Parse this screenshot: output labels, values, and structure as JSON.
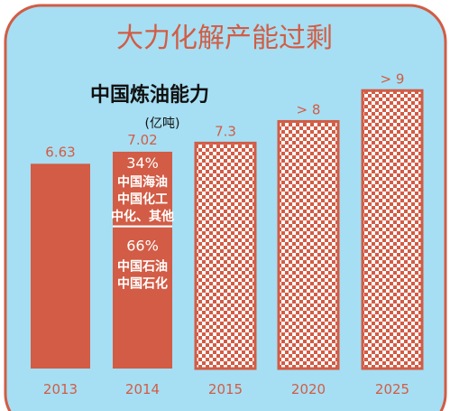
{
  "chart_data": {
    "type": "bar",
    "title": "大力化解产能过剩",
    "subtitle": "中国炼油能力",
    "unit": "(亿吨)",
    "categories": [
      "2013",
      "2014",
      "2015",
      "2020",
      "2025"
    ],
    "values": [
      6.63,
      7.02,
      7.3,
      8,
      9
    ],
    "value_labels": [
      "6.63",
      "7.02",
      "7.3",
      "> 8",
      "> 9"
    ],
    "bar_styles": [
      "solid",
      "stacked",
      "patterned",
      "patterned",
      "patterned"
    ],
    "stack_2014": [
      {
        "share": 66,
        "label_pct": "66%",
        "label_lines": [
          "中国石油",
          "中国石化"
        ]
      },
      {
        "share": 34,
        "label_pct": "34%",
        "label_lines": [
          "中国海油",
          "中国化工",
          "中化、其他"
        ]
      }
    ],
    "ylim": [
      0,
      9.3
    ],
    "colors": {
      "background": "#a6dff3",
      "border": "#d25c45",
      "bar": "#d25c45",
      "pattern_dot": "#d25c45",
      "pattern_bg": "#ffffff"
    }
  }
}
